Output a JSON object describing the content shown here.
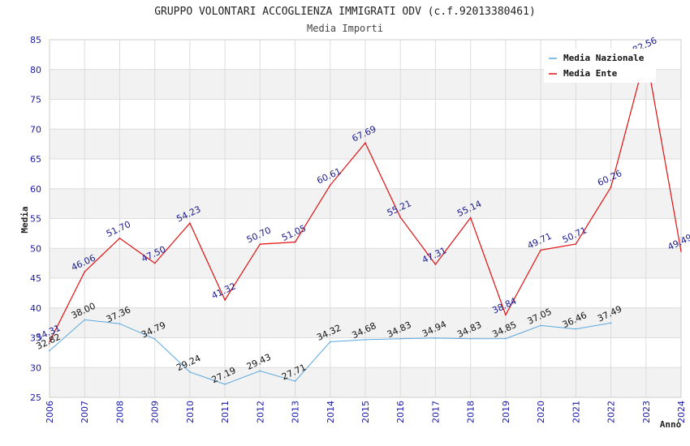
{
  "chart_data": {
    "type": "line",
    "title": "GRUPPO VOLONTARI ACCOGLIENZA IMMIGRATI ODV (c.f.92013380461)",
    "subtitle": "Media Importi",
    "xlabel": "Anno",
    "ylabel": "Media",
    "ylim": [
      25,
      85
    ],
    "yticks": [
      25,
      30,
      35,
      40,
      45,
      50,
      55,
      60,
      65,
      70,
      75,
      80,
      85
    ],
    "x": [
      "2006",
      "2007",
      "2008",
      "2009",
      "2010",
      "2011",
      "2012",
      "2013",
      "2014",
      "2015",
      "2016",
      "2017",
      "2018",
      "2019",
      "2020",
      "2021",
      "2022",
      "2023",
      "2024"
    ],
    "series": [
      {
        "name": "Media Nazionale",
        "color": "#5aa7e0",
        "values": [
          32.82,
          38.0,
          37.36,
          34.79,
          29.24,
          27.19,
          29.43,
          27.71,
          34.32,
          34.68,
          34.83,
          34.94,
          34.83,
          34.85,
          37.05,
          36.46,
          37.49,
          null,
          null
        ],
        "labels": [
          "32.82",
          "38.00",
          "37.36",
          "34.79",
          "29.24",
          "27.19",
          "29.43",
          "27.71",
          "34.32",
          "34.68",
          "34.83",
          "34.94",
          "34.83",
          "34.85",
          "37.05",
          "36.46",
          "37.49",
          null,
          null
        ]
      },
      {
        "name": "Media Ente",
        "color": "#e01010",
        "values": [
          34.31,
          46.06,
          51.7,
          47.5,
          54.23,
          41.32,
          50.7,
          51.05,
          60.61,
          67.69,
          55.21,
          47.31,
          55.14,
          38.84,
          49.71,
          50.71,
          60.26,
          82.56,
          49.49
        ],
        "labels": [
          "34.31",
          "46.06",
          "51.70",
          "47.50",
          "54.23",
          "41.32",
          "50.70",
          "51.05",
          "60.61",
          "67.69",
          "55.21",
          "47.31",
          "55.14",
          "38.84",
          "49.71",
          "50.71",
          "60.26",
          "82.56",
          "49.49"
        ]
      }
    ],
    "grid": true,
    "legend": "top-right",
    "band_colors": [
      "#ffffff",
      "#f2f2f2"
    ],
    "gridline_color": "#dcdcdc"
  }
}
